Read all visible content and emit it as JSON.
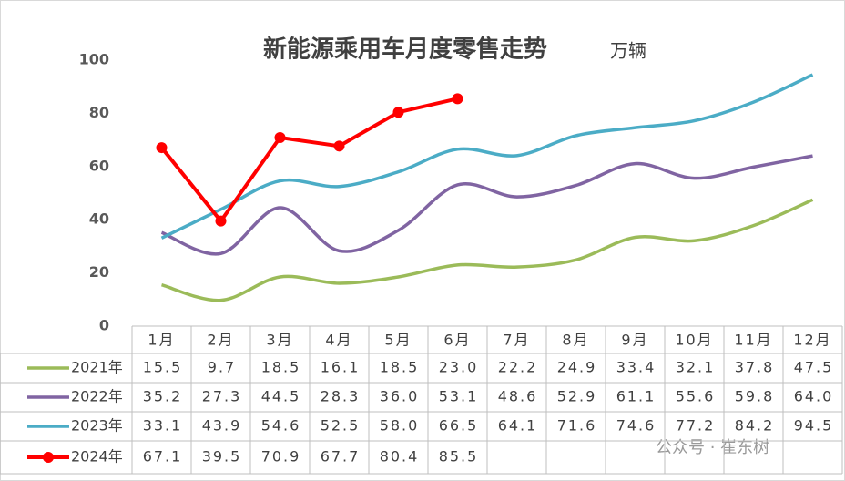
{
  "chart_data": {
    "type": "line",
    "title": "新能源乘用车月度零售走势",
    "subtitle": "万辆",
    "watermark": "公众号 · 崔东树",
    "categories": [
      "1月",
      "2月",
      "3月",
      "4月",
      "5月",
      "6月",
      "7月",
      "8月",
      "9月",
      "10月",
      "11月",
      "12月"
    ],
    "ylim": [
      0,
      100
    ],
    "yticks": [
      0,
      20,
      40,
      60,
      80,
      100
    ],
    "series": [
      {
        "name": "2021年",
        "color": "#9bbb59",
        "smooth": true,
        "values": [
          15.5,
          9.7,
          18.5,
          16.1,
          18.5,
          23.0,
          22.2,
          24.9,
          33.4,
          32.1,
          37.8,
          47.5
        ],
        "value_labels": [
          "15.5",
          "9.7",
          "18.5",
          "16.1",
          "18.5",
          "23.0",
          "22.2",
          "24.9",
          "33.4",
          "32.1",
          "37.8",
          "47.5"
        ]
      },
      {
        "name": "2022年",
        "color": "#8064a2",
        "smooth": true,
        "values": [
          35.2,
          27.3,
          44.5,
          28.3,
          36.0,
          53.1,
          48.6,
          52.9,
          61.1,
          55.6,
          59.8,
          64.0
        ],
        "value_labels": [
          "35.2",
          "27.3",
          "44.5",
          "28.3",
          "36.0",
          "53.1",
          "48.6",
          "52.9",
          "61.1",
          "55.6",
          "59.8",
          "64.0"
        ]
      },
      {
        "name": "2023年",
        "color": "#4bacc6",
        "smooth": true,
        "values": [
          33.1,
          43.9,
          54.6,
          52.5,
          58.0,
          66.5,
          64.1,
          71.6,
          74.6,
          77.2,
          84.2,
          94.5
        ],
        "value_labels": [
          "33.1",
          "43.9",
          "54.6",
          "52.5",
          "58.0",
          "66.5",
          "64.1",
          "71.6",
          "74.6",
          "77.2",
          "84.2",
          "94.5"
        ]
      },
      {
        "name": "2024年",
        "color": "#ff0000",
        "smooth": false,
        "markers": true,
        "values": [
          67.1,
          39.5,
          70.9,
          67.7,
          80.4,
          85.5,
          null,
          null,
          null,
          null,
          null,
          null
        ],
        "value_labels": [
          "67.1",
          "39.5",
          "70.9",
          "67.7",
          "80.4",
          "85.5",
          null,
          null,
          null,
          null,
          null,
          null
        ]
      }
    ]
  }
}
